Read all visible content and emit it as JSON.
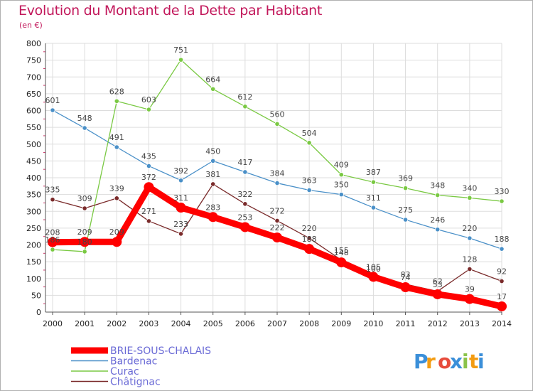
{
  "chart_data": {
    "type": "line",
    "title": "Evolution du Montant de la Dette par Habitant",
    "subtitle": "(en €)",
    "x": [
      2000,
      2001,
      2002,
      2003,
      2004,
      2005,
      2006,
      2007,
      2008,
      2009,
      2010,
      2011,
      2012,
      2013,
      2014
    ],
    "ylim": [
      0,
      800
    ],
    "yticks": [
      0,
      50,
      100,
      150,
      200,
      250,
      300,
      350,
      400,
      450,
      500,
      550,
      600,
      650,
      700,
      750,
      800
    ],
    "grid": true,
    "legend_position": "bottom-left",
    "series": [
      {
        "name": "BRIE-SOUS-CHALAIS",
        "color": "#ff0000",
        "values": [
          208,
          209,
          209,
          372,
          311,
          283,
          253,
          222,
          188,
          148,
          105,
          74,
          53,
          39,
          17
        ]
      },
      {
        "name": "Bardenac",
        "color": "#4a90c8",
        "values": [
          601,
          548,
          491,
          435,
          392,
          450,
          417,
          384,
          363,
          350,
          311,
          275,
          246,
          220,
          188
        ]
      },
      {
        "name": "Curac",
        "color": "#7ac943",
        "values": [
          186,
          180,
          628,
          603,
          751,
          664,
          612,
          560,
          504,
          409,
          387,
          369,
          348,
          340,
          330
        ]
      },
      {
        "name": "Châtignac",
        "color": "#7a2a2a",
        "values": [
          335,
          309,
          339,
          271,
          233,
          381,
          322,
          272,
          220,
          155,
          100,
          83,
          62,
          128,
          92
        ]
      }
    ]
  },
  "logo": {
    "text": "Proxiti",
    "letters": [
      "P",
      "r",
      "o",
      "x",
      "i",
      "t",
      "i"
    ],
    "colors": [
      "#3b8fd9",
      "#f39c12",
      "#e74c3c",
      "#3b8fd9",
      "#8bc34a",
      "#f39c12",
      "#3b8fd9"
    ]
  }
}
